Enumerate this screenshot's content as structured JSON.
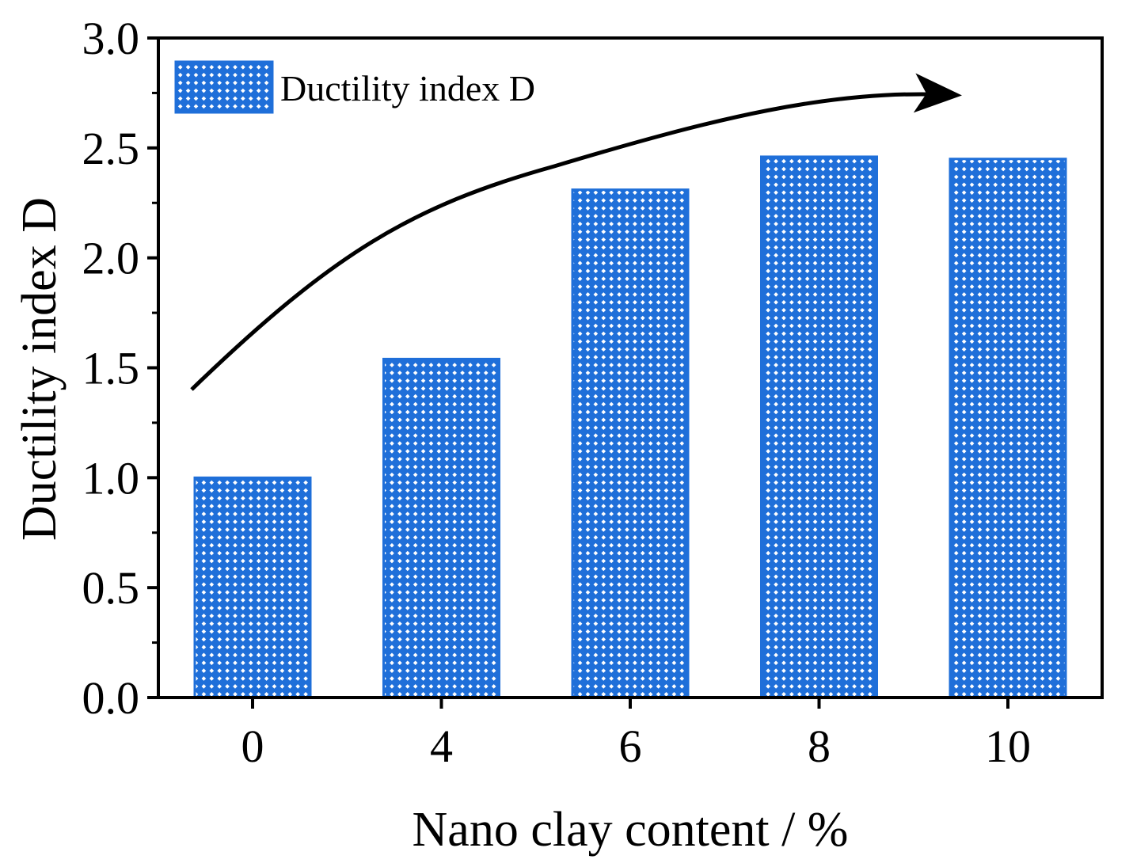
{
  "chart_data": {
    "type": "bar",
    "categories": [
      "0",
      "4",
      "6",
      "8",
      "10"
    ],
    "series": [
      {
        "name": "Ductility index D",
        "values": [
          1.0,
          1.54,
          2.31,
          2.46,
          2.45
        ]
      }
    ],
    "xlabel": "Nano clay content / %",
    "ylabel": "Ductility index D",
    "ylim": [
      0,
      3.0
    ],
    "yticks": [
      "0.0",
      "0.5",
      "1.0",
      "1.5",
      "2.0",
      "2.5",
      "3.0"
    ],
    "legend": {
      "label": "Ductility index D",
      "position": "top-left"
    },
    "annotation": "curved trend arrow rising from left to right",
    "grid": false,
    "colors": {
      "bar": "#1f6fd9",
      "pattern_dot": "#ffffff",
      "axis": "#000000"
    }
  }
}
